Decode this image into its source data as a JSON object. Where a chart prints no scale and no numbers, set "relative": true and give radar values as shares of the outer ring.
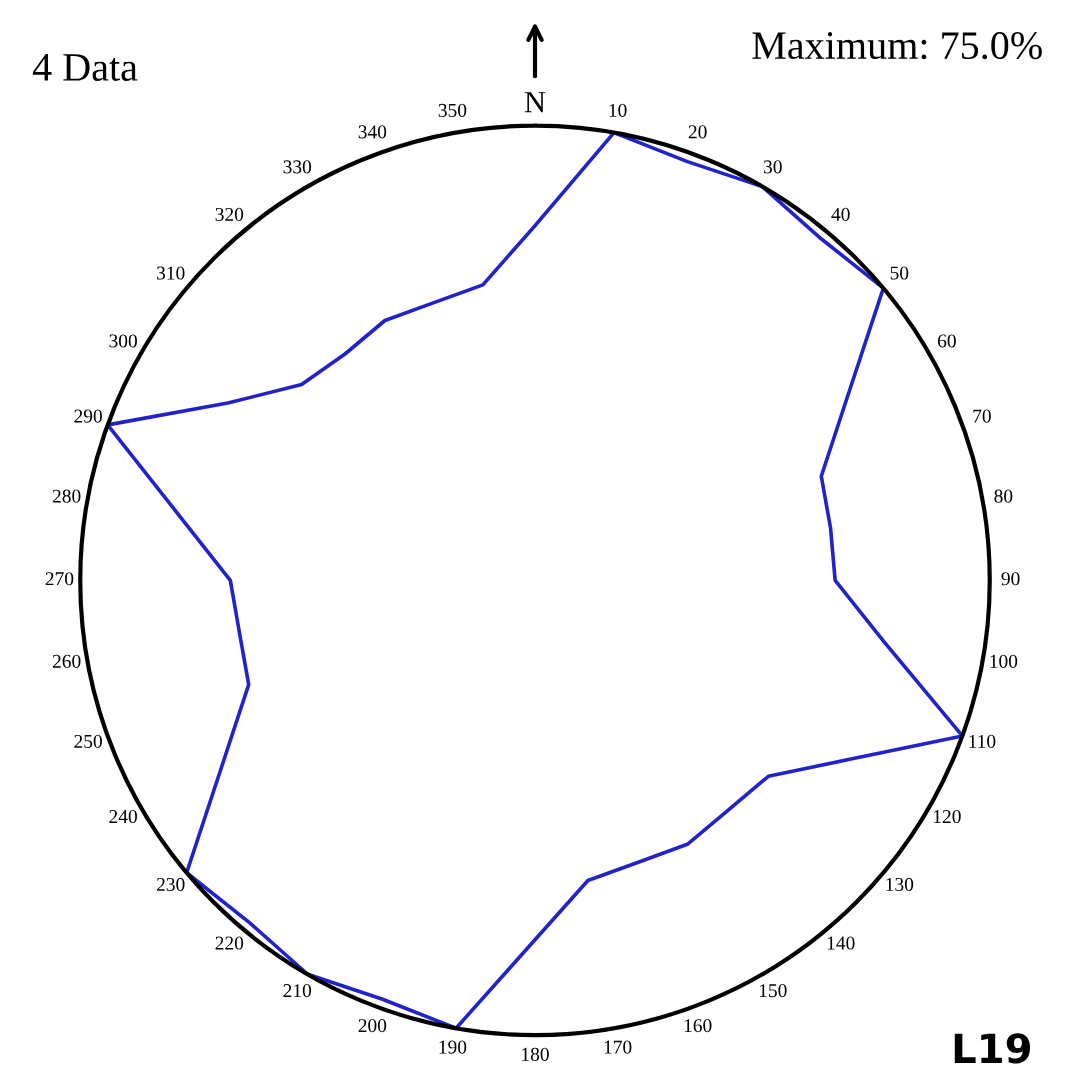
{
  "chart_data": {
    "type": "radar",
    "relative": true,
    "categories": [
      "N",
      "10",
      "20",
      "30",
      "40",
      "50",
      "60",
      "70",
      "80",
      "90",
      "100",
      "110",
      "120",
      "130",
      "140",
      "150",
      "160",
      "170",
      "180",
      "190",
      "200",
      "210",
      "220",
      "230",
      "240",
      "250",
      "260",
      "270",
      "280",
      "290",
      "300",
      "310",
      "320",
      "330",
      "340",
      "350"
    ],
    "series": [
      {
        "color": "#2222cc",
        "values": [
          0.78,
          1.0,
          0.98,
          1.0,
          0.98,
          1.0,
          0.79,
          0.67,
          0.66,
          0.66,
          0.78,
          1.0,
          0.79,
          0.67,
          0.66,
          0.67,
          0.66,
          0.67,
          0.79,
          1.0,
          0.98,
          1.0,
          0.98,
          1.0,
          0.79,
          0.67,
          0.66,
          0.67,
          0.79,
          1.0,
          0.78,
          0.67,
          0.65,
          0.66,
          0.65,
          0.66
        ]
      }
    ],
    "annotations": [
      "4 Data",
      "Maximum: 75.0%",
      "L19"
    ],
    "grid": false,
    "marker": "none",
    "line_style": "solid"
  }
}
